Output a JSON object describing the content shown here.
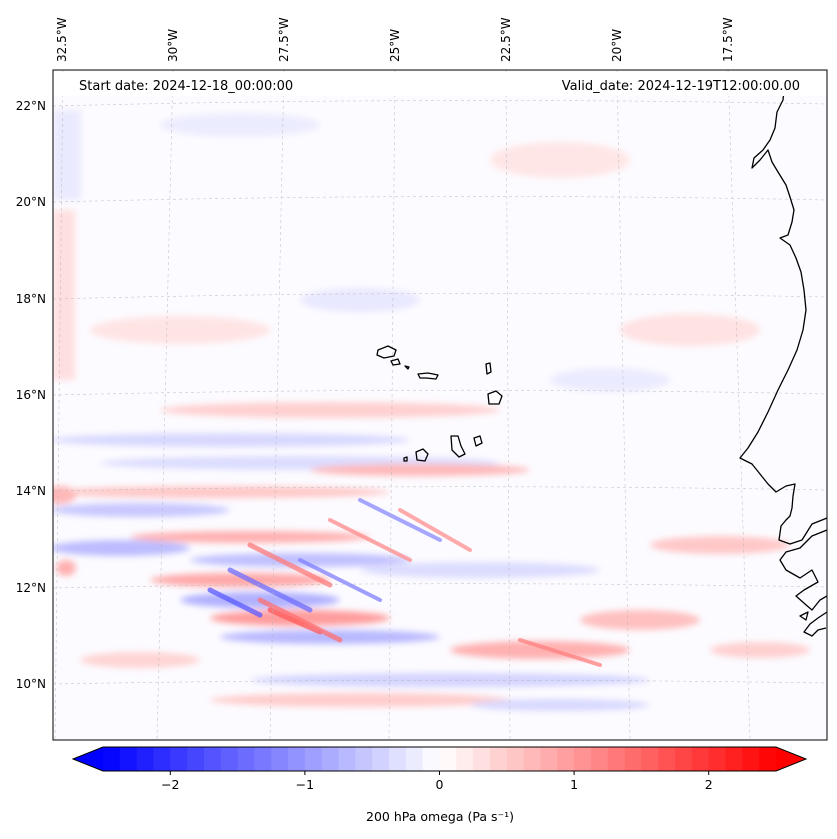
{
  "map": {
    "header_left": "Start date: 2024-12-18_00:00:00",
    "header_right": "Valid_date: 2024-12-19T12:00:00.00",
    "lon_labels": [
      "32.5°W",
      "30°W",
      "27.5°W",
      "25°W",
      "22.5°W",
      "20°W",
      "17.5°W"
    ],
    "lat_labels": [
      "22°N",
      "20°N",
      "18°N",
      "16°N",
      "14°N",
      "12°N",
      "10°N"
    ],
    "field": "200 hPa omega",
    "units": "Pa s⁻¹",
    "colorbar": {
      "label": "200 hPa omega (Pa s⁻¹)",
      "ticks": [
        "−2",
        "−1",
        "0",
        "1",
        "2"
      ],
      "tick_values": [
        -2,
        -1,
        0,
        1,
        2
      ],
      "range": [
        -2.5,
        2.5
      ],
      "extend": "both",
      "cmap": "bwr",
      "low_color": "#0000ff",
      "mid_color": "#ffffff",
      "high_color": "#ff0000"
    },
    "coastline_color": "#000000",
    "gridline_color": "#b0b0b0"
  }
}
